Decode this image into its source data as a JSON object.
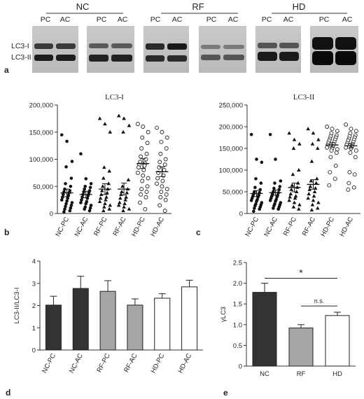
{
  "panel_letters": {
    "a": "a",
    "b": "b",
    "c": "c",
    "d": "d",
    "e": "e"
  },
  "blot": {
    "groups": [
      "NC",
      "RF",
      "HD"
    ],
    "lane_labels": [
      "PC",
      "AC",
      "PC",
      "AC"
    ],
    "band_labels": [
      "LC3-I",
      "LC3-II"
    ]
  },
  "chart_data": [
    {
      "id": "b",
      "type": "scatter",
      "title": "LC3-I",
      "categories": [
        "NC-PC",
        "NC-AC",
        "RF-PC",
        "RF-AC",
        "HD-PC",
        "HD-AC"
      ],
      "yticks": [
        "0",
        "50,000",
        "100,000",
        "150,000",
        "200,000"
      ],
      "ylim": [
        0,
        200000
      ],
      "markers": [
        "filled-circle",
        "filled-circle",
        "filled-triangle",
        "filled-triangle",
        "open-circle",
        "open-circle"
      ],
      "means": [
        38000,
        35000,
        45000,
        45000,
        92000,
        77000
      ],
      "sem": [
        7000,
        6000,
        10000,
        11000,
        9000,
        9000
      ],
      "points": [
        [
          145000,
          133000,
          96000,
          86000,
          65000,
          55000,
          50000,
          45000,
          42000,
          40000,
          38000,
          35000,
          33000,
          30000,
          28000,
          25000,
          23000,
          20000,
          18000,
          15000,
          13000,
          10000,
          8000,
          5000,
          3000
        ],
        [
          110000,
          64000,
          55000,
          50000,
          48000,
          45000,
          42000,
          40000,
          38000,
          35000,
          33000,
          30000,
          28000,
          25000,
          22000,
          20000,
          18000,
          15000,
          12000,
          10000,
          8000,
          5000
        ],
        [
          175000,
          165000,
          150000,
          85000,
          78000,
          65000,
          55000,
          50000,
          45000,
          42000,
          38000,
          35000,
          30000,
          28000,
          25000,
          22000,
          18000,
          15000,
          12000,
          8000,
          5000
        ],
        [
          180000,
          175000,
          162000,
          150000,
          62000,
          50000,
          45000,
          40000,
          38000,
          35000,
          30000,
          28000,
          25000,
          20000,
          18000,
          15000,
          12000,
          8000,
          5000
        ],
        [
          165000,
          160000,
          150000,
          140000,
          130000,
          120000,
          110000,
          105000,
          100000,
          95000,
          92000,
          90000,
          88000,
          85000,
          80000,
          75000,
          70000,
          65000,
          60000,
          50000,
          45000,
          40000,
          35000,
          30000,
          20000,
          8000
        ],
        [
          158000,
          150000,
          140000,
          132000,
          120000,
          110000,
          100000,
          95000,
          90000,
          85000,
          80000,
          75000,
          70000,
          65000,
          60000,
          55000,
          50000,
          45000,
          40000,
          35000,
          30000,
          25000,
          15000,
          5000
        ]
      ]
    },
    {
      "id": "c",
      "type": "scatter",
      "title": "LC3-II",
      "categories": [
        "NC-PC",
        "NC-AC",
        "RF-PC",
        "RF-AC",
        "HD-PC",
        "HD-AC"
      ],
      "yticks": [
        "0",
        "50,000",
        "100,000",
        "150,000",
        "200,000",
        "250,000"
      ],
      "ylim": [
        0,
        250000
      ],
      "markers": [
        "filled-circle",
        "filled-circle",
        "filled-triangle",
        "filled-triangle",
        "open-circle",
        "open-circle"
      ],
      "means": [
        46000,
        48000,
        60000,
        67000,
        158000,
        156000
      ],
      "sem": [
        7000,
        6000,
        10000,
        11000,
        5000,
        5000
      ],
      "points": [
        [
          182000,
          125000,
          118000,
          80000,
          70000,
          60000,
          55000,
          50000,
          48000,
          45000,
          42000,
          40000,
          38000,
          35000,
          32000,
          30000,
          28000,
          25000,
          22000,
          20000,
          18000,
          15000,
          12000,
          10000,
          5000
        ],
        [
          182000,
          125000,
          75000,
          70000,
          62000,
          58000,
          55000,
          50000,
          48000,
          45000,
          42000,
          40000,
          38000,
          35000,
          32000,
          30000,
          28000,
          25000,
          22000,
          20000,
          18000,
          15000,
          12000,
          10000
        ],
        [
          185000,
          170000,
          160000,
          150000,
          100000,
          90000,
          70000,
          65000,
          60000,
          55000,
          50000,
          45000,
          40000,
          38000,
          35000,
          30000,
          25000,
          20000,
          15000,
          10000
        ],
        [
          195000,
          185000,
          170000,
          160000,
          150000,
          120000,
          80000,
          75000,
          70000,
          62000,
          58000,
          55000,
          50000,
          45000,
          40000,
          35000,
          30000,
          25000,
          20000,
          12000,
          8000
        ],
        [
          200000,
          195000,
          190000,
          185000,
          180000,
          178000,
          175000,
          172000,
          170000,
          168000,
          165000,
          163000,
          160000,
          158000,
          155000,
          152000,
          150000,
          148000,
          145000,
          140000,
          130000,
          110000,
          95000,
          80000,
          65000
        ],
        [
          205000,
          195000,
          190000,
          185000,
          180000,
          178000,
          175000,
          172000,
          170000,
          168000,
          165000,
          162000,
          160000,
          158000,
          155000,
          152000,
          150000,
          145000,
          140000,
          130000,
          95000,
          90000,
          70000,
          60000,
          55000
        ]
      ]
    },
    {
      "id": "d",
      "type": "bar",
      "categories": [
        "NC-PC",
        "NC-AC",
        "RF-PC",
        "RF-AC",
        "HD-PC",
        "HD-AC"
      ],
      "values": [
        2.02,
        2.77,
        2.64,
        2.02,
        2.33,
        2.84
      ],
      "errors": [
        0.4,
        0.55,
        0.48,
        0.28,
        0.2,
        0.3
      ],
      "colors": [
        "#333333",
        "#333333",
        "#a6a6a6",
        "#a6a6a6",
        "#ffffff",
        "#ffffff"
      ],
      "ylabel": "LC3-II/LC3-I",
      "yticks": [
        "0",
        "1",
        "2",
        "3",
        "4"
      ],
      "ylim": [
        0,
        4
      ]
    },
    {
      "id": "e",
      "type": "bar",
      "categories": [
        "NC",
        "RF",
        "HD"
      ],
      "values": [
        1.78,
        0.92,
        1.22
      ],
      "errors": [
        0.22,
        0.08,
        0.08
      ],
      "colors": [
        "#333333",
        "#a6a6a6",
        "#ffffff"
      ],
      "ylabel": "γLC3",
      "yticks": [
        "0",
        "0.5",
        "1.0",
        "1.5",
        "2.0",
        "2.5"
      ],
      "ylim": [
        0,
        2.5
      ],
      "annotations": [
        "*",
        "n.s."
      ]
    }
  ]
}
